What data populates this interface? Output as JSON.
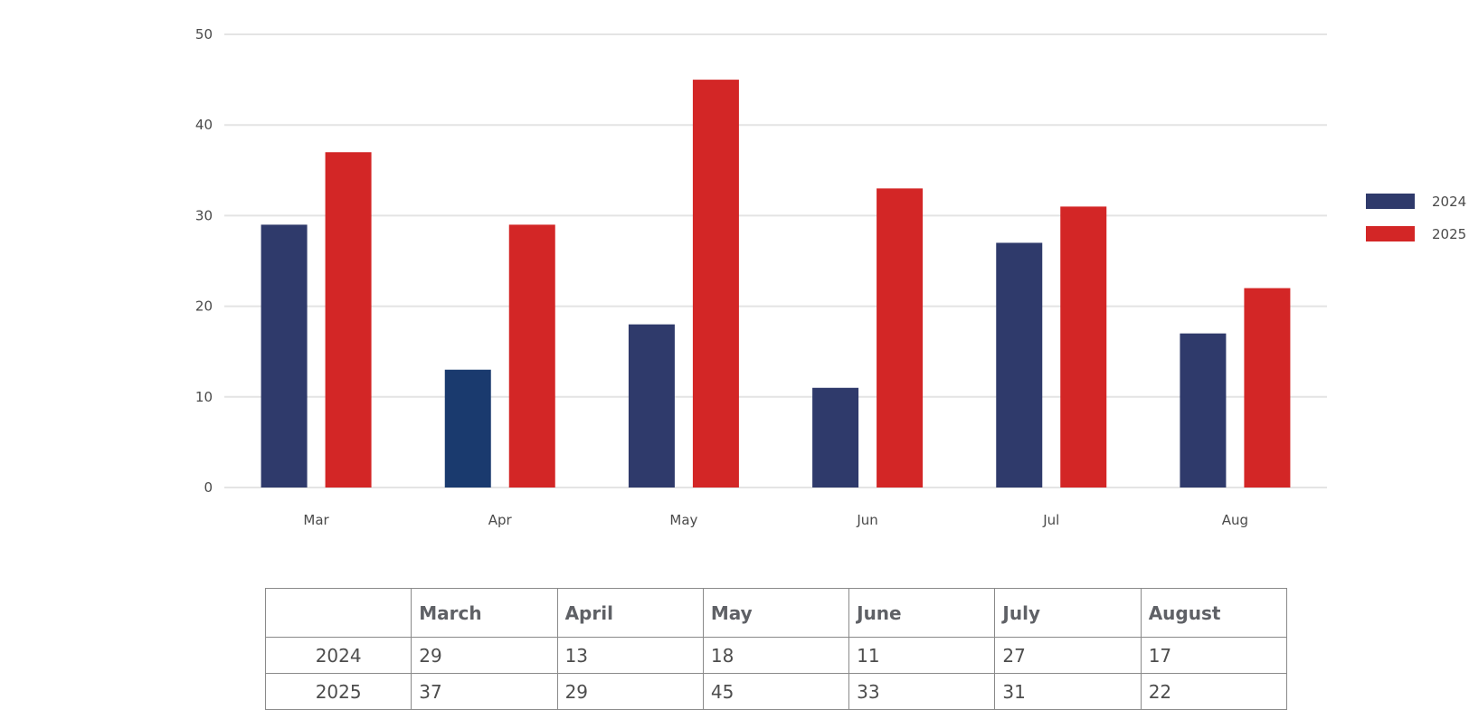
{
  "chart_data": {
    "type": "bar",
    "categories": [
      "Mar",
      "Apr",
      "May",
      "Jun",
      "Jul",
      "Aug"
    ],
    "series": [
      {
        "name": "2024",
        "values": [
          29,
          13,
          18,
          11,
          27,
          17
        ],
        "color": "#2f3a6b"
      },
      {
        "name": "2025",
        "values": [
          37,
          29,
          45,
          33,
          31,
          22
        ],
        "color": "#d32626"
      }
    ],
    "ylim": [
      0,
      50
    ],
    "yticks": [
      0,
      10,
      20,
      30,
      40,
      50
    ],
    "grid": true,
    "legend": "right",
    "highlight": {
      "series": 0,
      "index": 1,
      "color": "#1a3a6e"
    }
  },
  "table": {
    "corner": "",
    "headers": [
      "March",
      "April",
      "May",
      "June",
      "July",
      "August"
    ],
    "rows": [
      {
        "label": "2024",
        "cells": [
          "29",
          "13",
          "18",
          "11",
          "27",
          "17"
        ]
      },
      {
        "label": "2025",
        "cells": [
          "37",
          "29",
          "45",
          "33",
          "31",
          "22"
        ]
      }
    ]
  }
}
